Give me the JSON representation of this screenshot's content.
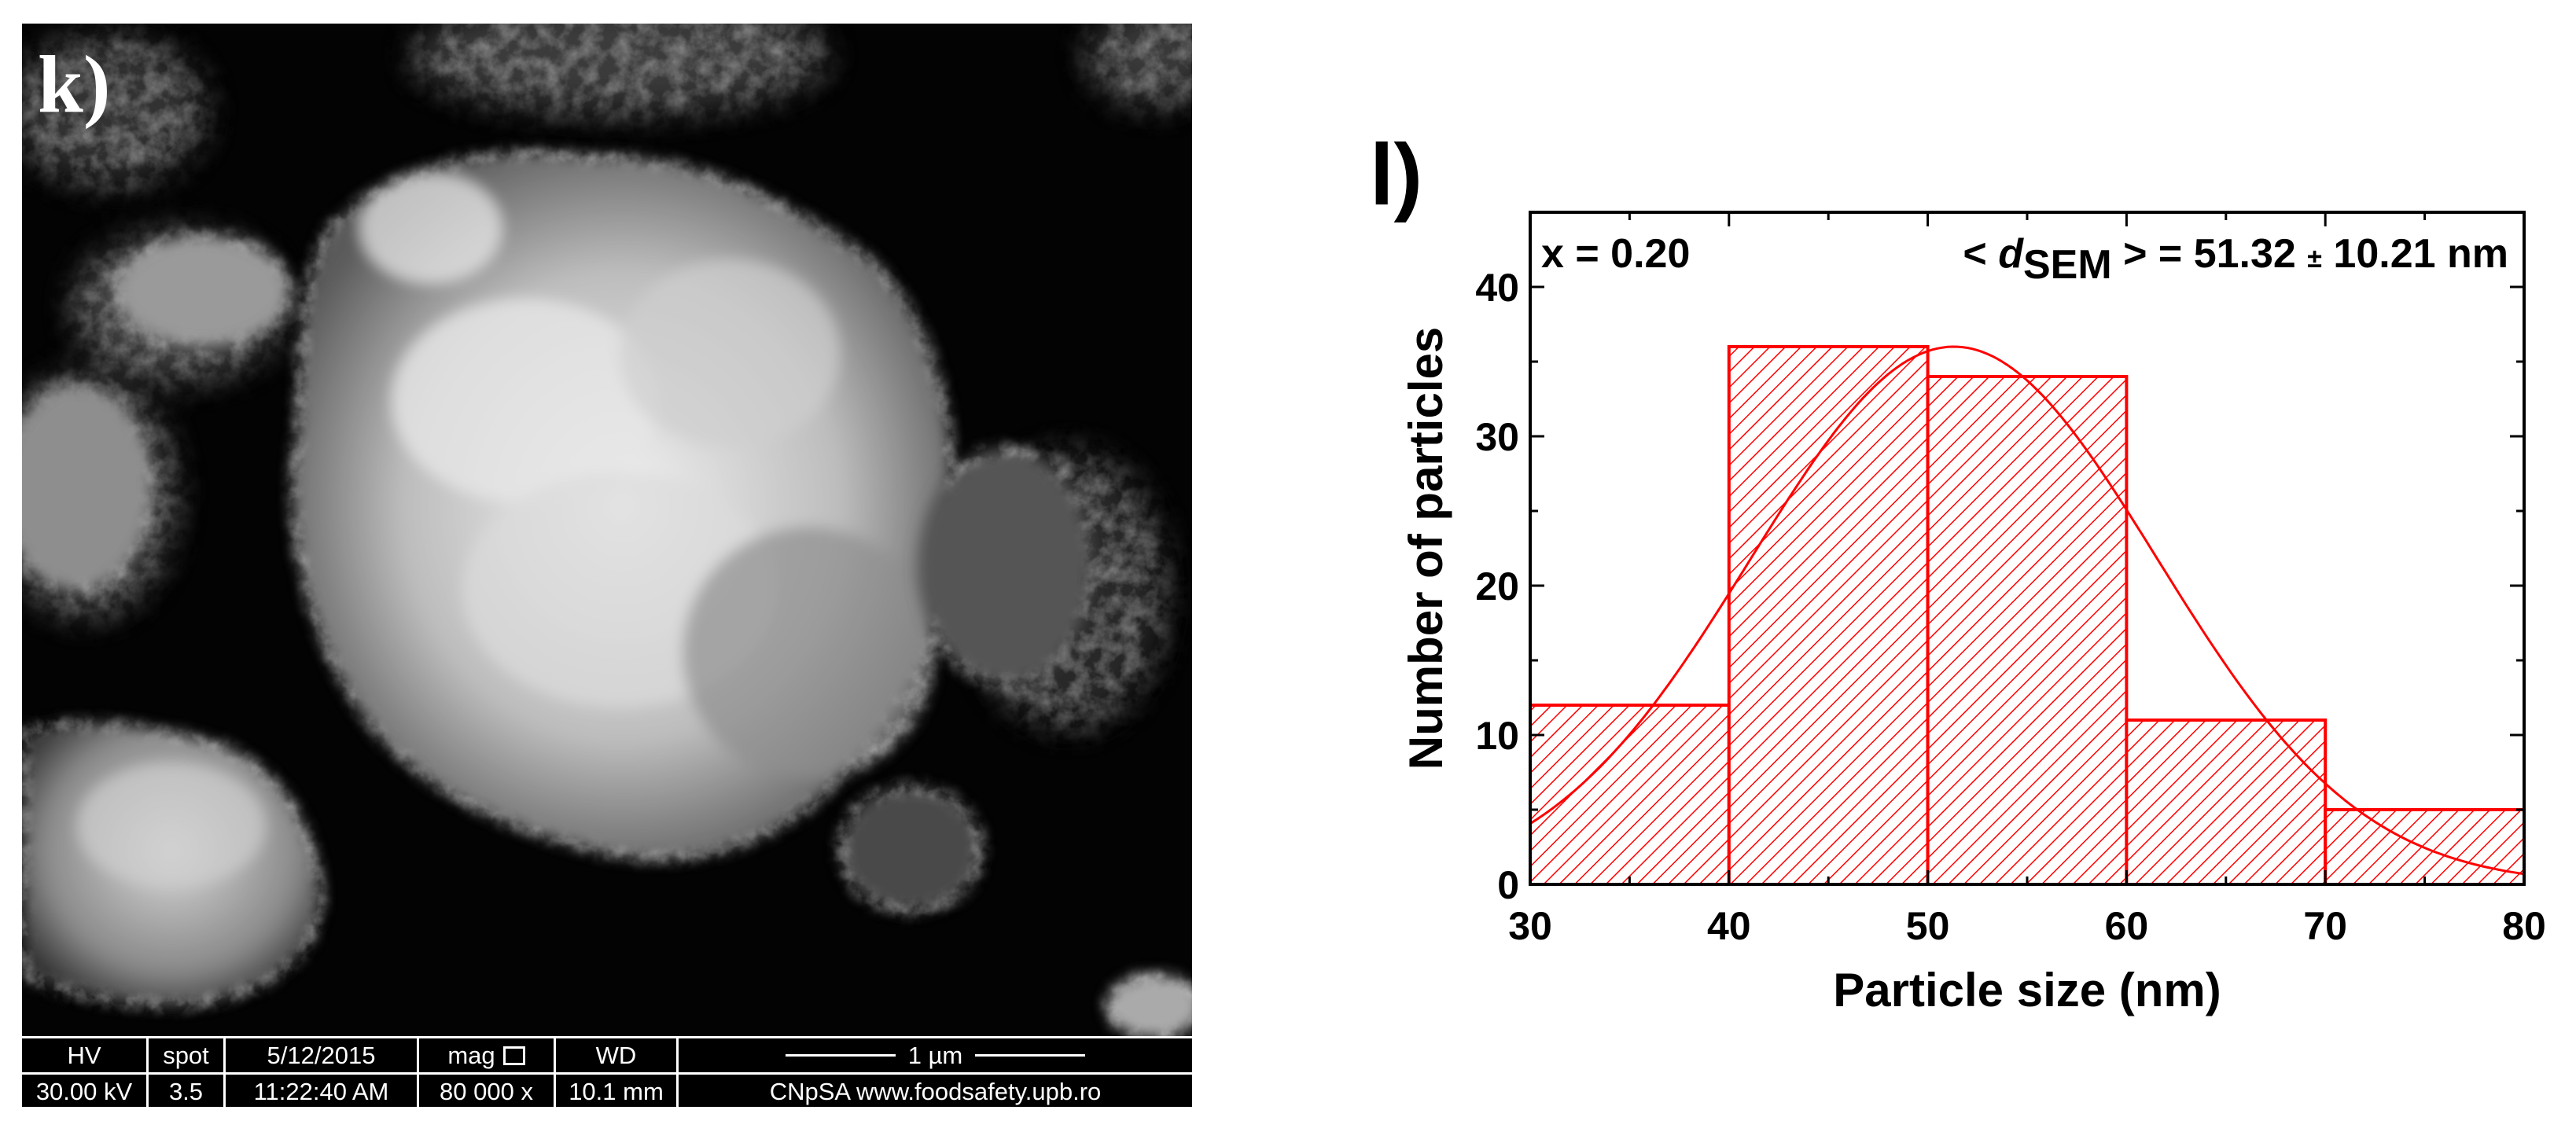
{
  "panel_k": {
    "label": "k)",
    "info_bar": {
      "hv_label": "HV",
      "hv_value": "30.00 kV",
      "spot_label": "spot",
      "spot_value": "3.5",
      "date": "5/12/2015",
      "time": "11:22:40 AM",
      "mag_label": "mag",
      "mag_value": "80 000 x",
      "wd_label": "WD",
      "wd_value": "10.1 mm",
      "scale_label": "1 µm",
      "credit": "CNpSA www.foodsafety.upb.ro"
    }
  },
  "panel_l": {
    "label": "l)",
    "annotation_left": "x = 0.20",
    "annotation_prefix": "< ",
    "annotation_d": "d",
    "annotation_sub": "SEM",
    "annotation_mid": " > = 51.32 ",
    "annotation_pm": "±",
    "annotation_end": " 10.21 nm"
  },
  "chart_data": {
    "type": "bar",
    "xlabel": "Particle size (nm)",
    "ylabel": "Number of particles",
    "xlim": [
      30,
      80
    ],
    "ylim": [
      0,
      45
    ],
    "x_ticks": [
      30,
      40,
      50,
      60,
      70,
      80
    ],
    "y_ticks": [
      0,
      10,
      20,
      30,
      40
    ],
    "bins": [
      [
        30,
        40
      ],
      [
        40,
        50
      ],
      [
        50,
        60
      ],
      [
        60,
        70
      ],
      [
        70,
        80
      ]
    ],
    "values": [
      12,
      36,
      34,
      11,
      5
    ],
    "fit": {
      "type": "gaussian",
      "center": 51.32,
      "sigma": 10.21,
      "peak": 36
    },
    "bar_color": "#ff0000",
    "fill_pattern": "diagonal-hatch",
    "grid": false
  }
}
